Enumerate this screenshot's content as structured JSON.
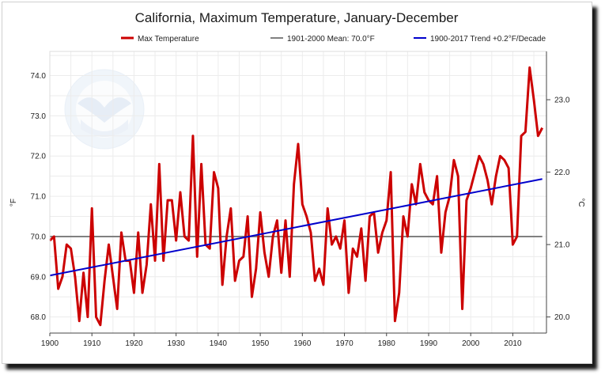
{
  "chart_data": {
    "type": "line",
    "title": "California, Maximum Temperature, January-December",
    "ylabel_left": "°F",
    "ylabel_right": "°C",
    "xlim": [
      1900,
      2018
    ],
    "ylim": [
      67.6,
      74.6
    ],
    "x_ticks": [
      "1900",
      "1910",
      "1920",
      "1930",
      "1940",
      "1950",
      "1960",
      "1970",
      "1980",
      "1990",
      "2000",
      "2010"
    ],
    "y_ticks_left": [
      "68.0",
      "69.0",
      "70.0",
      "71.0",
      "72.0",
      "73.0",
      "74.0"
    ],
    "y_ticks_right": [
      "20.0",
      "21.0",
      "22.0",
      "23.0"
    ],
    "grid": true,
    "legend_position": "top",
    "legend": [
      {
        "label": "Max Temperature",
        "color": "#cc0000"
      },
      {
        "label": "1901-2000 Mean: 70.0°F",
        "color": "#808080"
      },
      {
        "label": "1900-2017 Trend +0.2°F/Decade",
        "color": "#0000cc"
      }
    ],
    "series": [
      {
        "name": "Max Temperature",
        "color": "#cc0000",
        "x": [
          1900,
          1901,
          1902,
          1903,
          1904,
          1905,
          1906,
          1907,
          1908,
          1909,
          1910,
          1911,
          1912,
          1913,
          1914,
          1915,
          1916,
          1917,
          1918,
          1919,
          1920,
          1921,
          1922,
          1923,
          1924,
          1925,
          1926,
          1927,
          1928,
          1929,
          1930,
          1931,
          1932,
          1933,
          1934,
          1935,
          1936,
          1937,
          1938,
          1939,
          1940,
          1941,
          1942,
          1943,
          1944,
          1945,
          1946,
          1947,
          1948,
          1949,
          1950,
          1951,
          1952,
          1953,
          1954,
          1955,
          1956,
          1957,
          1958,
          1959,
          1960,
          1961,
          1962,
          1963,
          1964,
          1965,
          1966,
          1967,
          1968,
          1969,
          1970,
          1971,
          1972,
          1973,
          1974,
          1975,
          1976,
          1977,
          1978,
          1979,
          1980,
          1981,
          1982,
          1983,
          1984,
          1985,
          1986,
          1987,
          1988,
          1989,
          1990,
          1991,
          1992,
          1993,
          1994,
          1995,
          1996,
          1997,
          1998,
          1999,
          2000,
          2001,
          2002,
          2003,
          2004,
          2005,
          2006,
          2007,
          2008,
          2009,
          2010,
          2011,
          2012,
          2013,
          2014,
          2015,
          2016,
          2017
        ],
        "y": [
          69.9,
          70.0,
          68.7,
          69.0,
          69.8,
          69.7,
          69.0,
          67.9,
          69.1,
          68.0,
          70.7,
          68.0,
          67.8,
          68.9,
          69.8,
          69.0,
          68.2,
          70.1,
          69.4,
          69.4,
          68.6,
          70.1,
          68.6,
          69.3,
          70.8,
          69.4,
          71.8,
          69.4,
          70.9,
          70.9,
          69.9,
          71.1,
          70.0,
          69.9,
          72.5,
          69.5,
          71.8,
          69.8,
          69.7,
          71.6,
          71.2,
          68.8,
          70.0,
          70.7,
          68.9,
          69.4,
          69.5,
          70.5,
          68.5,
          69.2,
          70.6,
          69.6,
          69.0,
          70.0,
          70.4,
          69.1,
          70.4,
          69.0,
          71.3,
          72.3,
          70.8,
          70.5,
          70.1,
          68.9,
          69.2,
          68.8,
          70.7,
          69.8,
          70.0,
          69.7,
          70.4,
          68.6,
          69.7,
          69.5,
          70.2,
          68.9,
          70.5,
          70.6,
          69.6,
          70.1,
          70.4,
          71.6,
          67.9,
          68.6,
          70.5,
          70.0,
          71.3,
          70.8,
          71.8,
          71.1,
          70.9,
          70.8,
          71.5,
          69.6,
          70.6,
          71.0,
          71.9,
          71.5,
          68.2,
          70.9,
          71.2,
          71.6,
          72.0,
          71.8,
          71.4,
          70.8,
          71.5,
          72.0,
          71.9,
          71.7,
          69.8,
          70.0,
          72.5,
          72.6,
          74.2,
          73.4,
          72.5,
          72.7
        ]
      },
      {
        "name": "1901-2000 Mean: 70.0°F",
        "color": "#808080",
        "x": [
          1900,
          2017
        ],
        "y": [
          70.0,
          70.0
        ]
      },
      {
        "name": "1900-2017 Trend +0.2°F/Decade",
        "color": "#0000cc",
        "x": [
          1900,
          2017
        ],
        "y": [
          69.03,
          71.43
        ]
      }
    ]
  }
}
